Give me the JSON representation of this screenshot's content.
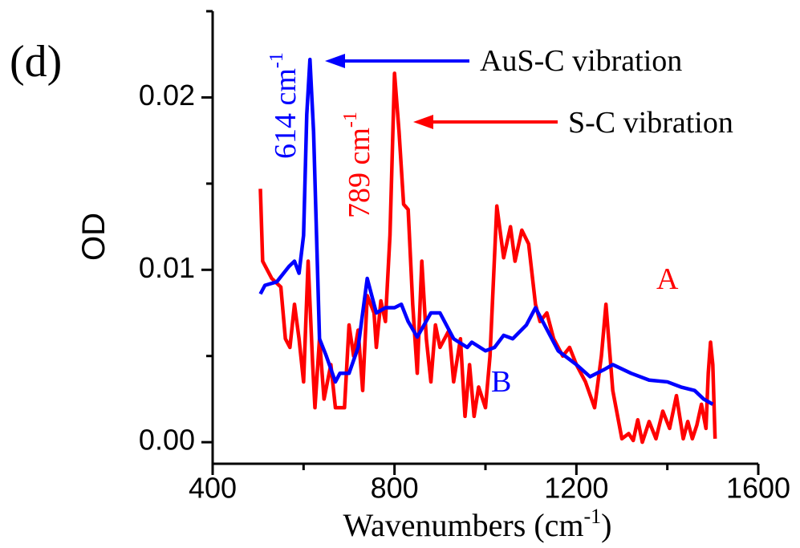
{
  "chart_data": {
    "type": "line",
    "x_label": [
      "Wavenumbers (cm",
      "-1",
      ")"
    ],
    "y_label": "OD",
    "xlim": [
      400,
      1600
    ],
    "ylim": [
      -0.00125,
      0.025
    ],
    "xticks": [
      400,
      800,
      1200,
      1600
    ],
    "xminorticks": [
      600,
      1000,
      1400
    ],
    "yticks": [
      {
        "value": 0,
        "label": "0.00"
      },
      0.01,
      0.02
    ],
    "yminorticks": [
      0.005,
      0.015,
      0.025
    ],
    "annotations": {
      "panel": "(d)",
      "peak_b": [
        "614 cm",
        "-1"
      ],
      "peak_a": [
        "789 cm",
        "-1"
      ],
      "vib_b": "AuS-C vibration",
      "vib_a": "S-C vibration",
      "curve_a": "A",
      "curve_b": "B"
    },
    "series": [
      {
        "name": "A",
        "color": "#ff0000",
        "x": [
          505,
          510,
          530,
          550,
          560,
          570,
          580,
          590,
          600,
          610,
          620,
          625,
          635,
          645,
          660,
          670,
          690,
          700,
          710,
          720,
          730,
          740,
          755,
          760,
          770,
          780,
          790,
          800,
          810,
          820,
          830,
          840,
          850,
          860,
          870,
          880,
          890,
          900,
          920,
          930,
          945,
          955,
          965,
          975,
          985,
          1000,
          1010,
          1025,
          1040,
          1055,
          1065,
          1080,
          1095,
          1110,
          1120,
          1135,
          1150,
          1170,
          1185,
          1200,
          1220,
          1240,
          1255,
          1265,
          1280,
          1300,
          1315,
          1325,
          1335,
          1345,
          1360,
          1375,
          1390,
          1405,
          1420,
          1435,
          1445,
          1455,
          1465,
          1475,
          1485,
          1490,
          1495,
          1500,
          1505
        ],
        "values": [
          0.0147,
          0.0105,
          0.0095,
          0.009,
          0.006,
          0.0055,
          0.008,
          0.006,
          0.0035,
          0.0105,
          0.0045,
          0.002,
          0.006,
          0.0025,
          0.0045,
          0.002,
          0.002,
          0.0068,
          0.005,
          0.0065,
          0.003,
          0.0085,
          0.0075,
          0.0055,
          0.0082,
          0.007,
          0.012,
          0.0214,
          0.018,
          0.0138,
          0.0135,
          0.008,
          0.004,
          0.0105,
          0.006,
          0.0035,
          0.0068,
          0.0055,
          0.0065,
          0.0035,
          0.006,
          0.0015,
          0.0045,
          0.0015,
          0.0032,
          0.002,
          0.005,
          0.0137,
          0.0107,
          0.0125,
          0.0105,
          0.0123,
          0.0115,
          0.008,
          0.007,
          0.0075,
          0.006,
          0.005,
          0.0055,
          0.0045,
          0.0035,
          0.002,
          0.005,
          0.008,
          0.003,
          0.0002,
          0.0005,
          0.0001,
          0.0013,
          0.0,
          0.0012,
          0.0002,
          0.0018,
          0.0008,
          0.0027,
          0.0002,
          0.0012,
          0.0002,
          0.001,
          0.0022,
          0.0008,
          0.004,
          0.0058,
          0.0045,
          0.0002
        ]
      },
      {
        "name": "B",
        "color": "#0000ff",
        "x": [
          505,
          515,
          541,
          568,
          580,
          590,
          600,
          607,
          614,
          622,
          635,
          650,
          670,
          680,
          700,
          720,
          740,
          760,
          780,
          800,
          815,
          830,
          850,
          880,
          900,
          930,
          960,
          970,
          1000,
          1020,
          1040,
          1060,
          1090,
          1110,
          1130,
          1160,
          1200,
          1230,
          1260,
          1280,
          1320,
          1360,
          1400,
          1430,
          1460,
          1480,
          1500
        ],
        "values": [
          0.0086,
          0.0091,
          0.0093,
          0.0102,
          0.0105,
          0.0098,
          0.012,
          0.019,
          0.0222,
          0.018,
          0.006,
          0.005,
          0.0035,
          0.004,
          0.004,
          0.0055,
          0.0095,
          0.0075,
          0.0078,
          0.0078,
          0.008,
          0.007,
          0.0061,
          0.0075,
          0.0075,
          0.006,
          0.0055,
          0.0058,
          0.0053,
          0.0055,
          0.0062,
          0.006,
          0.0068,
          0.0078,
          0.0068,
          0.0053,
          0.0045,
          0.0038,
          0.0042,
          0.0045,
          0.004,
          0.0036,
          0.0035,
          0.0032,
          0.003,
          0.0025,
          0.0022
        ]
      }
    ]
  }
}
